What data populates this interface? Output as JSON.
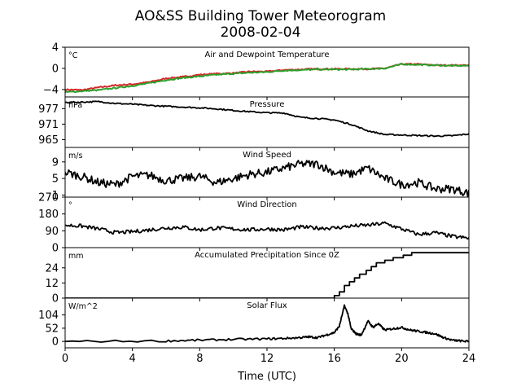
{
  "figure": {
    "title_line1": "AO&SS Building Tower Meteorogram",
    "title_line2": "2008-02-04",
    "xlabel": "Time (UTC)",
    "xticks": [
      0,
      4,
      8,
      12,
      16,
      20,
      24
    ],
    "xlim": [
      0,
      24
    ]
  },
  "chart_data": [
    {
      "type": "line",
      "title": "Air and Dewpoint Temperature",
      "unit": "°C",
      "ylim": [
        -5.4,
        4
      ],
      "yticks": [
        -4,
        0,
        4
      ],
      "series": [
        {
          "name": "Air Temperature",
          "color": "#d62728",
          "x": [
            0,
            1,
            2,
            3,
            4,
            5,
            6,
            7,
            8,
            9,
            10,
            11,
            12,
            13,
            14,
            15,
            16,
            17,
            18,
            19,
            20,
            21,
            22,
            23,
            24
          ],
          "y": [
            -4.0,
            -4.1,
            -3.6,
            -3.2,
            -3.0,
            -2.6,
            -1.9,
            -1.6,
            -1.2,
            -1.0,
            -0.9,
            -0.6,
            -0.6,
            -0.3,
            -0.2,
            -0.1,
            -0.1,
            -0.1,
            -0.1,
            0.0,
            0.8,
            0.8,
            0.6,
            0.6,
            0.6
          ]
        },
        {
          "name": "Dewpoint Temperature",
          "color": "#2ca02c",
          "x": [
            0,
            1,
            2,
            3,
            4,
            5,
            6,
            7,
            8,
            9,
            10,
            11,
            12,
            13,
            14,
            15,
            16,
            17,
            18,
            19,
            20,
            21,
            22,
            23,
            24
          ],
          "y": [
            -4.5,
            -4.3,
            -4.1,
            -3.7,
            -3.3,
            -2.8,
            -2.2,
            -1.8,
            -1.5,
            -1.2,
            -1.0,
            -0.8,
            -0.7,
            -0.4,
            -0.3,
            -0.2,
            -0.2,
            -0.2,
            -0.1,
            0.0,
            0.8,
            0.7,
            0.6,
            0.5,
            0.5
          ]
        }
      ]
    },
    {
      "type": "line",
      "title": "Pressure",
      "unit": "hPa",
      "ylim": [
        962,
        981.5
      ],
      "yticks": [
        965,
        971,
        977
      ],
      "series": [
        {
          "color": "#000000",
          "x": [
            0,
            1,
            2,
            3,
            4,
            5,
            6,
            7,
            8,
            9,
            10,
            11,
            12,
            13,
            14,
            15,
            16,
            17,
            18,
            19,
            20,
            21,
            22,
            23,
            24
          ],
          "y": [
            979.4,
            979.5,
            979.7,
            979.0,
            978.7,
            978.2,
            977.9,
            977.6,
            977.3,
            976.9,
            976.3,
            975.8,
            975.4,
            975.3,
            973.6,
            973.2,
            972.6,
            970.9,
            968.4,
            967.0,
            966.8,
            966.6,
            966.4,
            966.5,
            967.2
          ]
        }
      ]
    },
    {
      "type": "line",
      "title": "Wind Speed",
      "unit": "m/s",
      "ylim": [
        0.5,
        12.5
      ],
      "yticks": [
        1,
        5,
        9
      ],
      "series": [
        {
          "color": "#000000",
          "x": [
            0,
            1,
            2,
            3,
            4,
            5,
            6,
            7,
            8,
            9,
            10,
            11,
            12,
            13,
            14,
            15,
            16,
            17,
            18,
            19,
            20,
            21,
            22,
            23,
            24
          ],
          "y": [
            6.5,
            5.5,
            4.0,
            3.5,
            5.5,
            5.8,
            4.5,
            5.0,
            5.5,
            4.0,
            5.0,
            6.0,
            6.5,
            7.5,
            8.5,
            8.5,
            6.5,
            6.0,
            7.5,
            5.0,
            3.5,
            4.0,
            2.5,
            2.5,
            1.5
          ]
        }
      ]
    },
    {
      "type": "line",
      "title": "Wind Direction",
      "unit": "°",
      "ylim": [
        0,
        270
      ],
      "yticks": [
        0,
        90,
        180,
        270
      ],
      "series": [
        {
          "color": "#000000",
          "x": [
            0,
            1,
            2,
            3,
            4,
            5,
            6,
            7,
            8,
            9,
            10,
            11,
            12,
            13,
            14,
            15,
            16,
            17,
            18,
            19,
            20,
            21,
            22,
            23,
            24
          ],
          "y": [
            120,
            115,
            100,
            80,
            85,
            95,
            105,
            110,
            95,
            105,
            100,
            95,
            100,
            95,
            110,
            105,
            105,
            115,
            120,
            130,
            100,
            70,
            80,
            60,
            50
          ]
        }
      ]
    },
    {
      "type": "line",
      "title": "Accumulated Precipitation Since 0Z",
      "unit": "mm",
      "ylim": [
        0,
        40
      ],
      "yticks": [
        0,
        12,
        24
      ],
      "series": [
        {
          "color": "#000000",
          "x": [
            0,
            15.9,
            16.0,
            16.3,
            16.6,
            16.9,
            17.2,
            17.5,
            17.9,
            18.2,
            18.5,
            19.0,
            19.5,
            20.1,
            20.6,
            21.0,
            24
          ],
          "y": [
            0,
            0,
            2,
            5,
            10,
            13,
            16,
            19,
            22,
            25,
            28,
            30,
            32,
            34,
            36,
            36,
            36
          ]
        }
      ]
    },
    {
      "type": "line",
      "title": "Solar Flux",
      "unit": "W/m^2",
      "ylim": [
        -25,
        170
      ],
      "yticks": [
        0,
        52,
        104
      ],
      "series": [
        {
          "color": "#000000",
          "x": [
            0,
            6,
            8,
            10,
            12,
            13,
            14,
            14.5,
            15,
            15.5,
            16,
            16.3,
            16.6,
            16.8,
            17,
            17.3,
            17.6,
            18,
            18.3,
            18.6,
            19,
            19.5,
            20,
            20.5,
            21,
            21.5,
            22,
            22.5,
            23,
            23.5,
            24
          ],
          "y": [
            0,
            2,
            5,
            8,
            10,
            12,
            15,
            18,
            15,
            25,
            35,
            60,
            140,
            110,
            50,
            30,
            25,
            80,
            55,
            70,
            45,
            50,
            55,
            45,
            40,
            35,
            30,
            15,
            5,
            2,
            0
          ]
        }
      ]
    }
  ]
}
